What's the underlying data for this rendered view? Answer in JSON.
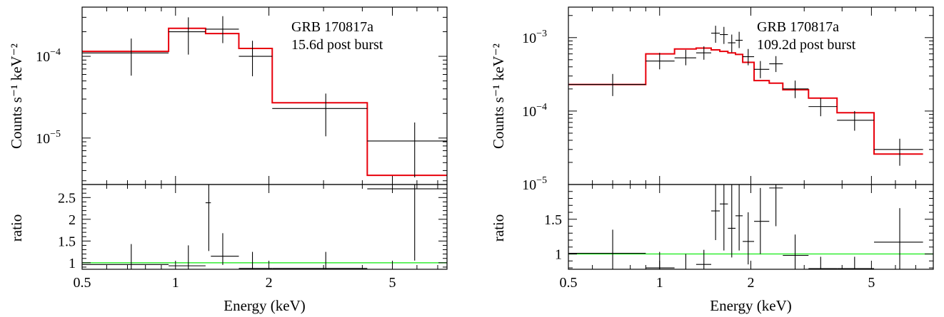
{
  "colors": {
    "data": "#000000",
    "model": "#e8000b",
    "unity": "#33ee33",
    "frame": "#000000"
  },
  "chart_data": [
    {
      "type": "line",
      "panel": "spectrum-left",
      "annotation": [
        "GRB 170817a",
        "15.6d post burst"
      ],
      "ylabel": "Counts s⁻¹ keV⁻²",
      "xscale": "log",
      "yscale": "log",
      "xlim": [
        0.5,
        7.5
      ],
      "ylim": [
        2.7e-06,
        0.0004
      ],
      "ytick_labels": [
        {
          "value": 1e-05,
          "base": "10",
          "exp": "−5"
        },
        {
          "value": 0.0001,
          "base": "10",
          "exp": "−4"
        }
      ],
      "data_points": [
        {
          "x": 0.72,
          "xlo": 0.5,
          "xhi": 0.95,
          "y": 0.00011,
          "ylo": 5.8e-05,
          "yhi": 0.000165
        },
        {
          "x": 1.1,
          "xlo": 0.95,
          "xhi": 1.25,
          "y": 0.0002,
          "ylo": 0.000105,
          "yhi": 0.0003
        },
        {
          "x": 1.42,
          "xlo": 1.25,
          "xhi": 1.6,
          "y": 0.000215,
          "ylo": 0.000145,
          "yhi": 0.00031
        },
        {
          "x": 1.77,
          "xlo": 1.6,
          "xhi": 2.05,
          "y": 0.0001,
          "ylo": 5.7e-05,
          "yhi": 0.000155
        },
        {
          "x": 3.05,
          "xlo": 2.05,
          "xhi": 4.15,
          "y": 2.3e-05,
          "ylo": 1.05e-05,
          "yhi": 3.5e-05
        },
        {
          "x": 5.9,
          "xlo": 4.15,
          "xhi": 7.5,
          "y": 9.2e-06,
          "ylo": 3.3e-06,
          "yhi": 1.55e-05
        }
      ],
      "model_steps": [
        {
          "xlo": 0.5,
          "xhi": 0.95,
          "y": 0.000115
        },
        {
          "xlo": 0.95,
          "xhi": 1.25,
          "y": 0.00022
        },
        {
          "xlo": 1.25,
          "xhi": 1.6,
          "y": 0.00019
        },
        {
          "xlo": 1.6,
          "xhi": 2.05,
          "y": 0.000125
        },
        {
          "xlo": 2.05,
          "xhi": 4.15,
          "y": 2.7e-05
        },
        {
          "xlo": 4.15,
          "xhi": 7.5,
          "y": 3.5e-06
        }
      ]
    },
    {
      "type": "scatter",
      "panel": "ratio-left",
      "ylabel": "ratio",
      "xlabel": "Energy (keV)",
      "xscale": "log",
      "xlim": [
        0.5,
        7.5
      ],
      "ylim": [
        0.85,
        2.8
      ],
      "ytick_labels": [
        "1",
        "1.5",
        "2",
        "2.5"
      ],
      "yticks": [
        1,
        1.5,
        2,
        2.5
      ],
      "xtick_labels": [
        "0.5",
        "1",
        "2",
        "5"
      ],
      "xticks": [
        0.5,
        1,
        2,
        5
      ],
      "unity_line": 1,
      "data_points": [
        {
          "x": 0.72,
          "xlo": 0.5,
          "xhi": 0.95,
          "y": 0.96,
          "ylo": 0.85,
          "yhi": 1.43
        },
        {
          "x": 1.1,
          "xlo": 0.95,
          "xhi": 1.25,
          "y": 0.93,
          "ylo": 0.85,
          "yhi": 1.4
        },
        {
          "x": 1.28,
          "xlo": 1.25,
          "xhi": 1.3,
          "y": 2.38,
          "ylo": 1.27,
          "yhi": 2.8
        },
        {
          "x": 1.42,
          "xlo": 1.3,
          "xhi": 1.6,
          "y": 1.15,
          "ylo": 0.95,
          "yhi": 1.68
        },
        {
          "x": 1.77,
          "xlo": 1.6,
          "xhi": 2.05,
          "y": 0.87,
          "ylo": 0.85,
          "yhi": 1.25
        },
        {
          "x": 3.05,
          "xlo": 2.05,
          "xhi": 4.15,
          "y": 0.87,
          "ylo": 0.85,
          "yhi": 1.25
        },
        {
          "x": 5.9,
          "xlo": 4.15,
          "xhi": 7.5,
          "y": 2.7,
          "ylo": 1.05,
          "yhi": 2.8
        }
      ]
    },
    {
      "type": "line",
      "panel": "spectrum-right",
      "annotation": [
        "GRB 170817a",
        "109.2d post burst"
      ],
      "ylabel": "Counts s⁻¹ keV⁻²",
      "xscale": "log",
      "yscale": "log",
      "xlim": [
        0.5,
        8.0
      ],
      "ylim": [
        1e-05,
        0.0026
      ],
      "ytick_labels": [
        {
          "value": 1e-05,
          "base": "10",
          "exp": "−5"
        },
        {
          "value": 0.0001,
          "base": "10",
          "exp": "−4"
        },
        {
          "value": 0.001,
          "base": "10",
          "exp": "−3"
        }
      ],
      "data_points": [
        {
          "x": 0.7,
          "xlo": 0.5,
          "xhi": 0.9,
          "y": 0.00023,
          "ylo": 0.00016,
          "yhi": 0.00032
        },
        {
          "x": 1.0,
          "xlo": 0.9,
          "xhi": 1.12,
          "y": 0.00048,
          "ylo": 0.00037,
          "yhi": 0.00062
        },
        {
          "x": 1.22,
          "xlo": 1.12,
          "xhi": 1.32,
          "y": 0.00053,
          "ylo": 0.00042,
          "yhi": 0.00068
        },
        {
          "x": 1.4,
          "xlo": 1.32,
          "xhi": 1.48,
          "y": 0.00062,
          "ylo": 0.0005,
          "yhi": 0.00076
        },
        {
          "x": 1.53,
          "xlo": 1.48,
          "xhi": 1.58,
          "y": 0.00115,
          "ylo": 0.00085,
          "yhi": 0.00145
        },
        {
          "x": 1.63,
          "xlo": 1.58,
          "xhi": 1.68,
          "y": 0.0011,
          "ylo": 0.00082,
          "yhi": 0.0014
        },
        {
          "x": 1.73,
          "xlo": 1.68,
          "xhi": 1.78,
          "y": 0.00085,
          "ylo": 0.00063,
          "yhi": 0.0011
        },
        {
          "x": 1.83,
          "xlo": 1.78,
          "xhi": 1.88,
          "y": 0.00092,
          "ylo": 0.00072,
          "yhi": 0.0012
        },
        {
          "x": 1.96,
          "xlo": 1.88,
          "xhi": 2.05,
          "y": 0.00055,
          "ylo": 0.00042,
          "yhi": 0.0007
        },
        {
          "x": 2.15,
          "xlo": 2.05,
          "xhi": 2.3,
          "y": 0.00037,
          "ylo": 0.00028,
          "yhi": 0.00048
        },
        {
          "x": 2.42,
          "xlo": 2.3,
          "xhi": 2.55,
          "y": 0.00044,
          "ylo": 0.00034,
          "yhi": 0.00056
        },
        {
          "x": 2.8,
          "xlo": 2.55,
          "xhi": 3.1,
          "y": 0.0002,
          "ylo": 0.00015,
          "yhi": 0.00026
        },
        {
          "x": 3.4,
          "xlo": 3.1,
          "xhi": 3.85,
          "y": 0.000115,
          "ylo": 8.5e-05,
          "yhi": 0.00015
        },
        {
          "x": 4.4,
          "xlo": 3.85,
          "xhi": 5.1,
          "y": 7.5e-05,
          "ylo": 5.4e-05,
          "yhi": 0.0001
        },
        {
          "x": 6.2,
          "xlo": 5.1,
          "xhi": 7.4,
          "y": 3e-05,
          "ylo": 1.8e-05,
          "yhi": 4.2e-05
        }
      ],
      "model_steps": [
        {
          "xlo": 0.5,
          "xhi": 0.9,
          "y": 0.00023
        },
        {
          "xlo": 0.9,
          "xhi": 1.12,
          "y": 0.0006
        },
        {
          "xlo": 1.12,
          "xhi": 1.32,
          "y": 0.0007
        },
        {
          "xlo": 1.32,
          "xhi": 1.48,
          "y": 0.00072
        },
        {
          "xlo": 1.48,
          "xhi": 1.58,
          "y": 0.00068
        },
        {
          "xlo": 1.58,
          "xhi": 1.68,
          "y": 0.00065
        },
        {
          "xlo": 1.68,
          "xhi": 1.78,
          "y": 0.00062
        },
        {
          "xlo": 1.78,
          "xhi": 1.88,
          "y": 0.00059
        },
        {
          "xlo": 1.88,
          "xhi": 2.05,
          "y": 0.00046
        },
        {
          "xlo": 2.05,
          "xhi": 2.3,
          "y": 0.00026
        },
        {
          "xlo": 2.3,
          "xhi": 2.55,
          "y": 0.00024
        },
        {
          "xlo": 2.55,
          "xhi": 3.1,
          "y": 0.000195
        },
        {
          "xlo": 3.1,
          "xhi": 3.85,
          "y": 0.00015
        },
        {
          "xlo": 3.85,
          "xhi": 5.1,
          "y": 9.5e-05
        },
        {
          "xlo": 5.1,
          "xhi": 7.4,
          "y": 2.6e-05
        }
      ]
    },
    {
      "type": "scatter",
      "panel": "ratio-right",
      "ylabel": "ratio",
      "xlabel": "Energy (keV)",
      "xscale": "log",
      "xlim": [
        0.5,
        8.0
      ],
      "ylim": [
        0.78,
        2.0
      ],
      "ytick_labels": [
        "1",
        "1.5"
      ],
      "yticks": [
        1,
        1.5
      ],
      "xtick_labels": [
        "0.5",
        "1",
        "2",
        "5"
      ],
      "xticks": [
        0.5,
        1,
        2,
        5
      ],
      "unity_line": 1,
      "data_points": [
        {
          "x": 0.7,
          "xlo": 0.5,
          "xhi": 0.9,
          "y": 1.01,
          "ylo": 0.78,
          "yhi": 1.35
        },
        {
          "x": 1.0,
          "xlo": 0.9,
          "xhi": 1.12,
          "y": 0.8,
          "ylo": 0.78,
          "yhi": 1.03
        },
        {
          "x": 1.22,
          "xlo": 1.12,
          "xhi": 1.32,
          "y": 0.78,
          "ylo": 0.78,
          "yhi": 1.0
        },
        {
          "x": 1.4,
          "xlo": 1.32,
          "xhi": 1.48,
          "y": 0.85,
          "ylo": 0.78,
          "yhi": 1.06
        },
        {
          "x": 1.53,
          "xlo": 1.48,
          "xhi": 1.58,
          "y": 1.62,
          "ylo": 1.2,
          "yhi": 2.0
        },
        {
          "x": 1.63,
          "xlo": 1.58,
          "xhi": 1.68,
          "y": 1.72,
          "ylo": 1.05,
          "yhi": 2.0
        },
        {
          "x": 1.73,
          "xlo": 1.68,
          "xhi": 1.78,
          "y": 1.37,
          "ylo": 0.95,
          "yhi": 2.0
        },
        {
          "x": 1.83,
          "xlo": 1.78,
          "xhi": 1.88,
          "y": 1.55,
          "ylo": 1.05,
          "yhi": 2.0
        },
        {
          "x": 1.96,
          "xlo": 1.88,
          "xhi": 2.05,
          "y": 1.18,
          "ylo": 0.85,
          "yhi": 1.6
        },
        {
          "x": 2.15,
          "xlo": 2.05,
          "xhi": 2.3,
          "y": 1.47,
          "ylo": 1.0,
          "yhi": 1.95
        },
        {
          "x": 2.42,
          "xlo": 2.3,
          "xhi": 2.55,
          "y": 1.95,
          "ylo": 1.4,
          "yhi": 2.0
        },
        {
          "x": 2.8,
          "xlo": 2.55,
          "xhi": 3.1,
          "y": 0.98,
          "ylo": 0.78,
          "yhi": 1.28
        },
        {
          "x": 3.4,
          "xlo": 3.1,
          "xhi": 3.85,
          "y": 0.79,
          "ylo": 0.78,
          "yhi": 0.96
        },
        {
          "x": 4.4,
          "xlo": 3.85,
          "xhi": 5.1,
          "y": 0.79,
          "ylo": 0.78,
          "yhi": 0.96
        },
        {
          "x": 6.2,
          "xlo": 5.1,
          "xhi": 7.4,
          "y": 1.17,
          "ylo": 0.7,
          "yhi": 1.66
        }
      ]
    }
  ]
}
